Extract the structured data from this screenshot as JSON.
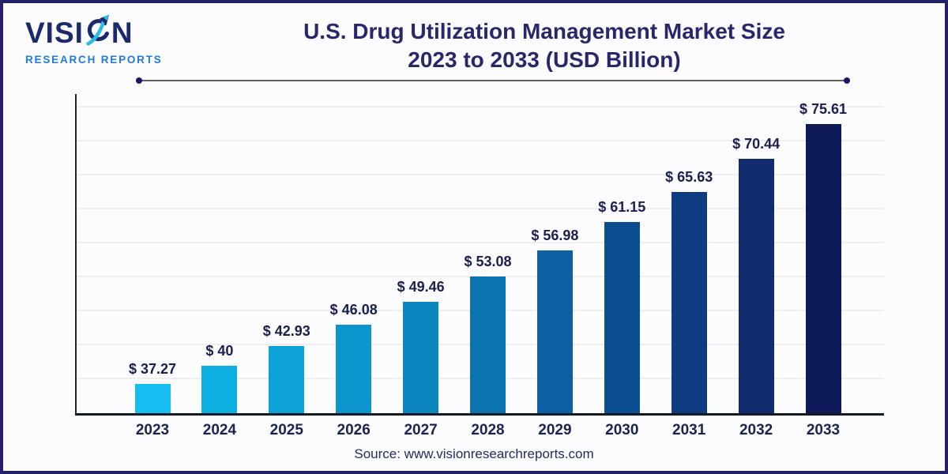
{
  "logo": {
    "word_prefix": "VISI",
    "word_suffix": "N",
    "subtitle": "RESEARCH REPORTS",
    "word_color": "#1B2A6B",
    "subtitle_color": "#1D7CD9",
    "icon": "growth-arrow-icon",
    "icon_colors": {
      "swoosh": "#29BCE8",
      "circle": "#1B2A6B"
    }
  },
  "header": {
    "title_line1": "U.S. Drug Utilization Management Market Size",
    "title_line2": "2023 to 2033 (USD Billion)",
    "title_color": "#29276B"
  },
  "chart_data": {
    "type": "bar",
    "title": "U.S. Drug Utilization Management Market Size 2023 to 2033 (USD Billion)",
    "xlabel": "",
    "ylabel": "",
    "categories": [
      "2023",
      "2024",
      "2025",
      "2026",
      "2027",
      "2028",
      "2029",
      "2030",
      "2031",
      "2032",
      "2033"
    ],
    "values": [
      37.27,
      40,
      42.93,
      46.08,
      49.46,
      53.08,
      56.98,
      61.15,
      65.63,
      70.44,
      75.61
    ],
    "value_labels": [
      "$ 37.27",
      "$ 40",
      "$ 42.93",
      "$ 46.08",
      "$ 49.46",
      "$ 53.08",
      "$ 56.98",
      "$ 61.15",
      "$ 65.63",
      "$ 70.44",
      "$ 75.61"
    ],
    "unit": "USD Billion",
    "bar_colors": [
      "#15BDF0",
      "#0DAFE3",
      "#0CA2D7",
      "#0C95CC",
      "#0C86BE",
      "#0B74B0",
      "#0A60A0",
      "#0B4F91",
      "#0D3C80",
      "#102C6E",
      "#0F1A5B"
    ],
    "ylim": [
      33,
      80
    ],
    "grid_step": 5,
    "gridlines": true,
    "legend_position": "none",
    "axis_color": "#141A22",
    "gridline_color": "#EEEDF2",
    "value_label_color": "#1A1F4E",
    "tick_label_color": "#1D2352"
  },
  "footer": {
    "source": "Source: www.visionresearchreports.com"
  }
}
